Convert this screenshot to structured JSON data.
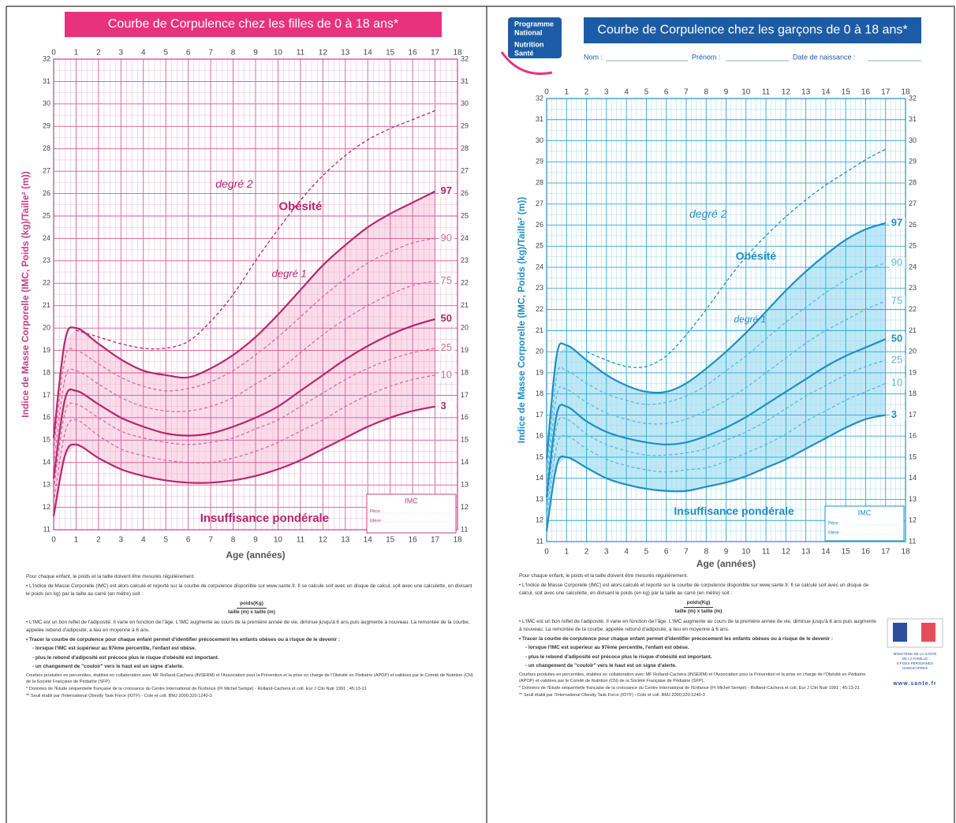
{
  "chart_data": [
    {
      "type": "line",
      "title": "Courbe de Corpulence chez les filles de 0 à 18 ans*",
      "title_color": "#e8327c",
      "xlabel": "Age (années)",
      "ylabel": "Indice de Masse Corporelle (IMC, Poids (kg)/Taille² (m))",
      "x": [
        0,
        0.5,
        1,
        2,
        3,
        4,
        5,
        6,
        7,
        8,
        9,
        10,
        11,
        12,
        13,
        14,
        15,
        16,
        17
      ],
      "xlim": [
        0,
        18
      ],
      "xticks": [
        0,
        1,
        2,
        3,
        4,
        5,
        6,
        7,
        8,
        9,
        10,
        11,
        12,
        13,
        14,
        15,
        16,
        17,
        18
      ],
      "ylim": [
        11,
        32
      ],
      "yticks": [
        11,
        12,
        13,
        14,
        15,
        16,
        17,
        18,
        19,
        20,
        21,
        22,
        23,
        24,
        25,
        26,
        27,
        28,
        29,
        30,
        31,
        32
      ],
      "grid": true,
      "grid_color": "#d9579a",
      "minor_grid_color": "#f0b4d2",
      "axis_color": "#c8407e",
      "shade": [
        0,
        6
      ],
      "shade_color": "#fadcea",
      "series": [
        {
          "name": "3",
          "color": "#b5276b",
          "dash": false,
          "values": [
            11.6,
            14.3,
            14.8,
            14.2,
            13.7,
            13.4,
            13.2,
            13.1,
            13.1,
            13.2,
            13.4,
            13.7,
            14.1,
            14.6,
            15.1,
            15.6,
            16.0,
            16.3,
            16.5
          ]
        },
        {
          "name": "10",
          "color": "#d66aa0",
          "dash": true,
          "values": [
            12.2,
            15.3,
            15.9,
            15.2,
            14.6,
            14.3,
            14.1,
            14.0,
            14.0,
            14.2,
            14.5,
            14.9,
            15.4,
            15.9,
            16.5,
            17.0,
            17.4,
            17.7,
            17.9
          ]
        },
        {
          "name": "25",
          "color": "#d66aa0",
          "dash": true,
          "values": [
            12.8,
            16.2,
            16.6,
            16.0,
            15.4,
            15.1,
            14.9,
            14.8,
            14.9,
            15.1,
            15.5,
            15.9,
            16.5,
            17.1,
            17.7,
            18.2,
            18.6,
            18.9,
            19.1
          ]
        },
        {
          "name": "50",
          "color": "#b5276b",
          "dash": false,
          "values": [
            13.3,
            16.8,
            17.2,
            16.6,
            16.0,
            15.6,
            15.3,
            15.2,
            15.3,
            15.6,
            16.0,
            16.5,
            17.2,
            17.9,
            18.6,
            19.2,
            19.7,
            20.1,
            20.4
          ]
        },
        {
          "name": "75",
          "color": "#d66aa0",
          "dash": true,
          "values": [
            13.9,
            17.7,
            18.1,
            17.5,
            16.9,
            16.5,
            16.3,
            16.3,
            16.5,
            16.9,
            17.5,
            18.1,
            18.9,
            19.7,
            20.4,
            21.0,
            21.5,
            21.9,
            22.1
          ]
        },
        {
          "name": "90",
          "color": "#d66aa0",
          "dash": true,
          "values": [
            14.5,
            18.6,
            19.0,
            18.4,
            17.8,
            17.4,
            17.2,
            17.3,
            17.6,
            18.1,
            18.8,
            19.6,
            20.5,
            21.4,
            22.2,
            22.9,
            23.4,
            23.8,
            24.0
          ]
        },
        {
          "name": "97",
          "color": "#b5276b",
          "dash": false,
          "values": [
            15.1,
            19.4,
            20.0,
            19.3,
            18.6,
            18.1,
            17.9,
            17.8,
            18.2,
            18.8,
            19.6,
            20.6,
            21.7,
            22.8,
            23.7,
            24.5,
            25.1,
            25.6,
            26.1
          ]
        },
        {
          "name": "degré 2",
          "color": "#b5276b",
          "dash": true,
          "values": [
            null,
            null,
            19.9,
            19.6,
            19.3,
            19.1,
            19.1,
            19.4,
            20.3,
            21.5,
            23.0,
            24.4,
            25.7,
            26.8,
            27.7,
            28.4,
            28.9,
            29.3,
            29.7
          ]
        }
      ],
      "annotations": [
        "Obésité",
        "degré 1",
        "Insuffisance pondérale"
      ],
      "imc_box": {
        "title": "IMC",
        "rows": [
          "Père",
          "Mère"
        ]
      }
    },
    {
      "type": "line",
      "title": "Courbe de Corpulence chez les garçons de 0 à 18 ans*",
      "title_color": "#1c5ca6",
      "xlabel": "Age (années)",
      "ylabel": "Indice de Masse Corporelle (IMC, Poids (kg)/Taille² (m))",
      "x": [
        0,
        0.5,
        1,
        2,
        3,
        4,
        5,
        6,
        7,
        8,
        9,
        10,
        11,
        12,
        13,
        14,
        15,
        16,
        17
      ],
      "xlim": [
        0,
        18
      ],
      "xticks": [
        0,
        1,
        2,
        3,
        4,
        5,
        6,
        7,
        8,
        9,
        10,
        11,
        12,
        13,
        14,
        15,
        16,
        17,
        18
      ],
      "ylim": [
        11,
        32
      ],
      "yticks": [
        11,
        12,
        13,
        14,
        15,
        16,
        17,
        18,
        19,
        20,
        21,
        22,
        23,
        24,
        25,
        26,
        27,
        28,
        29,
        30,
        31,
        32
      ],
      "grid": true,
      "grid_color": "#2aa8d8",
      "minor_grid_color": "#9fdcf0",
      "axis_color": "#1e8fc4",
      "shade": [
        0,
        6
      ],
      "shade_color": "#bfe8f6",
      "series": [
        {
          "name": "3",
          "color": "#1e8fc4",
          "dash": false,
          "values": [
            11.5,
            14.6,
            15.0,
            14.5,
            14.0,
            13.7,
            13.5,
            13.4,
            13.4,
            13.6,
            13.8,
            14.1,
            14.5,
            14.9,
            15.4,
            15.9,
            16.4,
            16.8,
            17.0
          ]
        },
        {
          "name": "10",
          "color": "#57b9e0",
          "dash": true,
          "values": [
            12.2,
            15.5,
            16.0,
            15.4,
            14.9,
            14.6,
            14.4,
            14.3,
            14.4,
            14.5,
            14.8,
            15.2,
            15.6,
            16.1,
            16.7,
            17.2,
            17.7,
            18.1,
            18.5
          ]
        },
        {
          "name": "25",
          "color": "#57b9e0",
          "dash": true,
          "values": [
            12.6,
            16.4,
            16.8,
            16.1,
            15.6,
            15.3,
            15.1,
            15.1,
            15.2,
            15.4,
            15.8,
            16.2,
            16.7,
            17.3,
            17.9,
            18.4,
            18.9,
            19.3,
            19.6
          ]
        },
        {
          "name": "50",
          "color": "#1e8fc4",
          "dash": false,
          "values": [
            13.1,
            17.0,
            17.4,
            16.7,
            16.2,
            15.9,
            15.7,
            15.6,
            15.7,
            16.0,
            16.4,
            16.9,
            17.5,
            18.1,
            18.7,
            19.3,
            19.8,
            20.2,
            20.6
          ]
        },
        {
          "name": "75",
          "color": "#57b9e0",
          "dash": true,
          "values": [
            13.6,
            17.9,
            18.2,
            17.6,
            17.1,
            16.8,
            16.6,
            16.6,
            16.8,
            17.2,
            17.7,
            18.3,
            19.0,
            19.7,
            20.4,
            21.0,
            21.5,
            22.0,
            22.4
          ]
        },
        {
          "name": "90",
          "color": "#57b9e0",
          "dash": true,
          "values": [
            14.2,
            18.8,
            19.1,
            18.5,
            18.0,
            17.7,
            17.5,
            17.6,
            17.9,
            18.4,
            19.1,
            19.8,
            20.6,
            21.4,
            22.1,
            22.8,
            23.4,
            23.9,
            24.2
          ]
        },
        {
          "name": "97",
          "color": "#1e8fc4",
          "dash": false,
          "values": [
            14.9,
            19.8,
            20.3,
            19.6,
            18.9,
            18.4,
            18.1,
            18.1,
            18.5,
            19.2,
            20.0,
            20.9,
            21.9,
            22.9,
            23.8,
            24.6,
            25.3,
            25.8,
            26.1
          ]
        },
        {
          "name": "degré 2",
          "color": "#1e8fc4",
          "dash": true,
          "values": [
            null,
            null,
            null,
            20.0,
            19.6,
            19.3,
            19.3,
            19.8,
            20.8,
            22.0,
            23.3,
            24.5,
            25.5,
            26.4,
            27.2,
            27.9,
            28.5,
            29.1,
            29.6
          ]
        }
      ],
      "annotations": [
        "Obésité",
        "degré 1",
        "Insuffisance pondérale"
      ],
      "imc_box": {
        "title": "IMC",
        "rows": [
          "Père",
          "Mère"
        ]
      }
    }
  ],
  "notes": [
    "Pour chaque enfant, le poids et la taille doivent être mesurés régulièrement.",
    "• L'Indice de Masse Corporelle (IMC) est alors calculé et reporté sur la courbe de corpulence disponible sur www.sante.fr. Il se calcule soit avec un disque de calcul, soit avec une calculette, en divisant le poids (en kg) par la taille au carré (en mètre) soit :",
    "• L'IMC est un bon reflet de l'adiposité. Il varie en fonction de l'âge. L'IMC augmente au cours de la première année de vie, diminue jusqu'à 6 ans puis augmente à nouveau. La remontée de la courbe, appelée rebond d'adiposité, a lieu en moyenne à 6 ans.",
    "• Tracer la courbe de corpulence pour chaque enfant permet d'identifier précocement les enfants obèses ou à risque de le devenir :",
    "- lorsque l'IMC est supérieur au 97ème percentile, l'enfant est obèse.",
    "- plus le rebond d'adiposité est précoce plus le risque d'obésité est important.",
    "- un changement de \"couloir\" vers le haut est un signe d'alerte.",
    "Courbes produites en percentiles, établies en collaboration avec MF Rolland-Cachera (INSERM) et l'Association pour la Prévention et la prise en charge de l'Obésité en Pédiatrie (APOP) et validées par le Comité de Nutrition (CN) de la Société Française de Pédiatrie (SFP).",
    "* Données de l'Etude séquentielle française de la croissance du Centre International de l'Enfance (Pr Michel Sempé) - Rolland-Cachera et coll. Eur J Clin Nutr 1991 ; 45:13-21",
    "** Seuil établi par l'International Obesity Task Force (IOTF) - Cole et coll. BMJ 2000;320:1240-3"
  ],
  "formula": {
    "numerator": "poids(Kg)",
    "denominator": "taille (m) x taille (m)"
  },
  "logo": [
    "Programme",
    "National",
    "Nutrition",
    "Santé"
  ],
  "form": [
    "Nom :",
    "Prénom :",
    "Date de naissance :"
  ],
  "ministry": [
    "MINISTÈRE DE LA SANTÉ",
    "DE LA FAMILLE",
    "ET DES PERSONNES",
    "HANDICAPÉES"
  ],
  "url": "www.sante.fr"
}
